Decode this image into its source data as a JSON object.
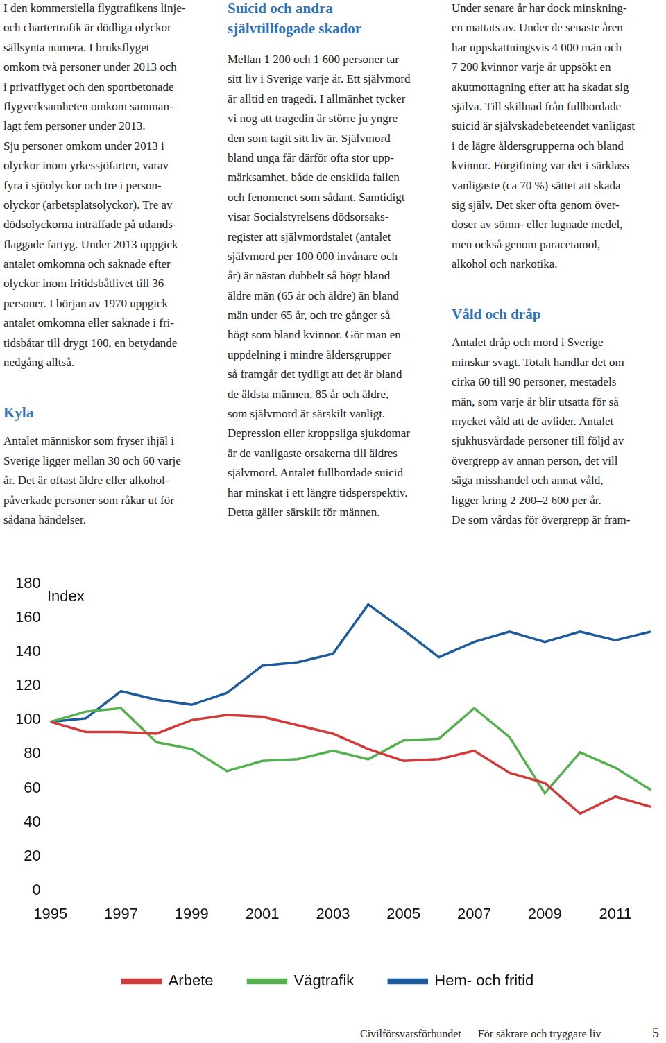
{
  "document": {
    "columns": [
      {
        "items": [
          {
            "kind": "paragraph",
            "lines": [
              "I den kommersiella flygtrafikens linje-",
              "och chartertrafik är dödliga olyckor",
              "sällsynta numera. I bruksflyget",
              "omkom två personer under 2013 och",
              "i privatflyget och den sportbetonade",
              "flygverksamheten omkom samman-",
              "lagt fem personer under 2013.",
              "Sju personer omkom under 2013 i",
              "olyckor inom yrkessjöfarten, varav",
              "fyra i sjöolyckor och tre i person-",
              "olyckor (arbetsplatsolyckor). Tre av",
              "dödsolyckorna inträffade på utlands-",
              "flaggade fartyg. Under 2013 uppgick",
              "antalet omkomna och saknade efter",
              "olyckor inom fritidsbåtlivet till 36",
              "personer. I början av 1970 uppgick",
              "antalet omkomna eller saknade i fri-",
              "tidsbåtar till drygt 100, en betydande",
              "nedgång alltså."
            ]
          },
          {
            "kind": "heading",
            "lines": [
              "Kyla"
            ]
          },
          {
            "kind": "paragraph",
            "lines": [
              "Antalet människor som fryser ihjäl i",
              "Sverige ligger mellan 30 och 60 varje",
              "år. Det är oftast äldre eller alkohol-",
              "påverkade personer som råkar ut för",
              "sådana händelser."
            ]
          }
        ]
      },
      {
        "items": [
          {
            "kind": "heading",
            "lines": [
              "Suicid och andra",
              "självtillfogade skador"
            ]
          },
          {
            "kind": "paragraph",
            "lines": [
              "Mellan 1 200 och 1 600 personer tar",
              "sitt liv i Sverige varje år. Ett självmord",
              "är alltid en tragedi. I allmänhet tycker",
              "vi nog att tragedin är större ju yngre",
              "den som tagit sitt liv är. Självmord",
              "bland unga får därför ofta stor upp-",
              "märksamhet, både de enskilda fallen",
              "och fenomenet som sådant. Samtidigt",
              "visar Socialstyrelsens dödsorsaks-",
              "register att självmordstalet (antalet",
              "självmord per 100 000 invånare och",
              "år) är nästan dubbelt så högt bland",
              "äldre män (65 år och äldre) än bland",
              "män under 65 år, och tre gånger så",
              "högt som bland kvinnor. Gör man en",
              "uppdelning i mindre åldersgrupper",
              "så framgår det tydligt att det är bland",
              "de äldsta männen, 85 år och äldre,",
              "som självmord är särskilt vanligt.",
              "Depression eller kroppsliga sjukdomar",
              "är de vanligaste orsakerna till äldres",
              "självmord. Antalet fullbordade suicid",
              "har minskat i ett längre tidsperspektiv.",
              "Detta gäller särskilt för männen."
            ]
          }
        ]
      },
      {
        "items": [
          {
            "kind": "paragraph",
            "lines": [
              "Under senare år har dock minskning-",
              "en mattats av. Under de senaste åren",
              "har uppskattningsvis 4 000 män och",
              "7 200 kvinnor varje år uppsökt en",
              "akutmottagning efter att ha skadat sig",
              "själva. Till skillnad från fullbordade",
              "suicid är självskadebeteendet vanligast",
              "i de lägre åldersgrupperna och bland",
              "kvinnor. Förgiftning var det i särklass",
              "vanligaste (ca 70 %) sättet att skada",
              "sig själv. Det sker ofta genom över-",
              "doser av sömn- eller lugnade medel,",
              "men också genom paracetamol,",
              "alkohol och narkotika."
            ]
          },
          {
            "kind": "heading",
            "lines": [
              "Våld och dråp"
            ]
          },
          {
            "kind": "paragraph",
            "lines": [
              "Antalet dråp och mord i Sverige",
              "minskar svagt. Totalt handlar det om",
              "cirka 60 till 90 personer, mestadels",
              "män, som varje år blir utsatta för så",
              "mycket våld att de avlider. Antalet",
              "sjukhusvårdade personer till följd av",
              "övergrepp av annan person, det vill",
              "säga misshandel och annat våld,",
              "ligger kring 2 200–2 600 per år.",
              "De som vårdas för övergrepp är fram-"
            ]
          }
        ]
      }
    ],
    "footer": {
      "text": "Civilförsvarsförbundet — För säkrare och tryggare liv",
      "page": "5"
    }
  },
  "chart_data": {
    "type": "line",
    "annotation": "Index",
    "categories": [
      "1995",
      null,
      "1997",
      null,
      "1999",
      null,
      "2001",
      null,
      "2003",
      null,
      "2005",
      null,
      "2007",
      null,
      "2009",
      null,
      "2011",
      null
    ],
    "series": [
      {
        "name": "Arbete",
        "color": "#d23a3a",
        "values": [
          99,
          93,
          93,
          92,
          100,
          103,
          102,
          97,
          92,
          83,
          76,
          77,
          82,
          69,
          63,
          45,
          55,
          49
        ]
      },
      {
        "name": "Vägtrafik",
        "color": "#55b04f",
        "values": [
          99,
          105,
          107,
          87,
          83,
          70,
          76,
          77,
          82,
          77,
          88,
          89,
          107,
          90,
          57,
          81,
          72,
          59
        ]
      },
      {
        "name": "Hem- och fritid",
        "color": "#1d5b9c",
        "values": [
          99,
          101,
          117,
          112,
          109,
          116,
          132,
          134,
          139,
          168,
          153,
          137,
          146,
          152,
          146,
          152,
          147,
          152
        ]
      }
    ],
    "ylim": [
      0,
      180
    ],
    "yticks": [
      0,
      20,
      40,
      60,
      80,
      100,
      120,
      140,
      160,
      180
    ],
    "grid": false,
    "legend": "bottom"
  }
}
